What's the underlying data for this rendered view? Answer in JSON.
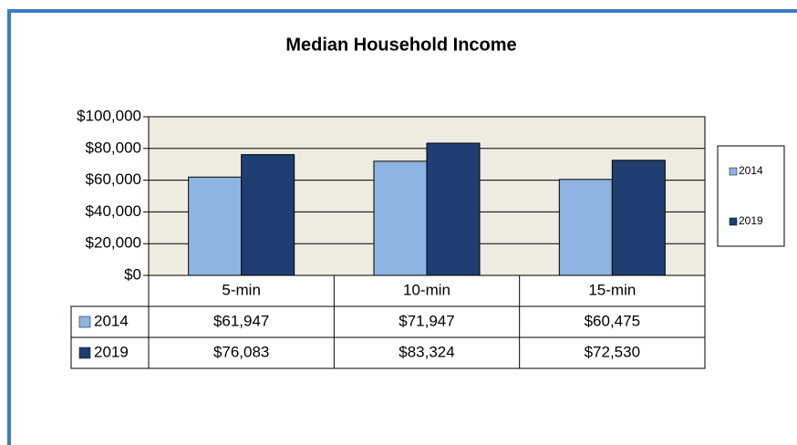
{
  "chart_data": {
    "type": "bar",
    "title": "Median Household Income",
    "categories": [
      "5-min",
      "10-min",
      "15-min"
    ],
    "series": [
      {
        "name": "2014",
        "color": "#8db4e2",
        "values": [
          61947,
          71947,
          60475
        ],
        "value_labels": [
          "$61,947",
          "$71,947",
          "$60,475"
        ]
      },
      {
        "name": "2019",
        "color": "#1f3f73",
        "values": [
          76083,
          83324,
          72530
        ],
        "value_labels": [
          "$76,083",
          "$83,324",
          "$72,530"
        ]
      }
    ],
    "ylim": [
      0,
      100000
    ],
    "yticks": [
      {
        "value": 0,
        "label": "$0"
      },
      {
        "value": 20000,
        "label": "$20,000"
      },
      {
        "value": 40000,
        "label": "$40,000"
      },
      {
        "value": 60000,
        "label": "$60,000"
      },
      {
        "value": 80000,
        "label": "$80,000"
      },
      {
        "value": 100000,
        "label": "$100,000"
      }
    ],
    "grid": true,
    "legend": "right"
  }
}
